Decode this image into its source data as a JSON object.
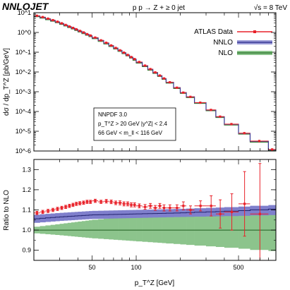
{
  "header": {
    "brand": "NNLOJET",
    "process": "p p → Z + ≥ 0 jet",
    "energy": "√s = 8 TeV"
  },
  "legend": [
    {
      "label": "ATLAS Data",
      "color": "#e8222a"
    },
    {
      "label": "NNLO",
      "color": "#4a4aa6"
    },
    {
      "label": "NLO",
      "color": "#4f9e4f"
    }
  ],
  "infobox": {
    "line1": "NNPDF 3.0",
    "line2": "p_T^Z > 20 GeV   |y^Z| < 2.4",
    "line3": "66 GeV < m_ll < 116 GeV"
  },
  "chart_data": [
    {
      "type": "line",
      "title": "",
      "ylabel": "dσ / dp_T^Z [pb/GeV]",
      "xscale": "log",
      "yscale": "log",
      "xlim": [
        20,
        900
      ],
      "ylim": [
        1e-06,
        10
      ],
      "grid": false,
      "legend_position": "top-right",
      "yticks": [
        "10^-6",
        "10^-5",
        "10^-4",
        "10^-3",
        "10^-2",
        "10^-1",
        "10^0",
        "10^1"
      ],
      "bin_edges": [
        20,
        22,
        24,
        26,
        28,
        30,
        32,
        34,
        36,
        38,
        40,
        42.5,
        45,
        47.5,
        50,
        55,
        60,
        65,
        70,
        75,
        80,
        85,
        90,
        95,
        100,
        110,
        120,
        130,
        140,
        150,
        160,
        180,
        200,
        220,
        250,
        300,
        350,
        400,
        500,
        600,
        800,
        900
      ],
      "series": [
        {
          "name": "ATLAS Data",
          "values": [
            7.0,
            6.0,
            5.0,
            4.2,
            3.5,
            2.9,
            2.4,
            2.0,
            1.7,
            1.45,
            1.2,
            1.0,
            0.82,
            0.7,
            0.55,
            0.4,
            0.3,
            0.22,
            0.165,
            0.125,
            0.095,
            0.073,
            0.057,
            0.045,
            0.032,
            0.021,
            0.014,
            0.0095,
            0.0066,
            0.0047,
            0.003,
            0.0016,
            0.0009,
            0.00055,
            0.00028,
            0.00012,
            5.5e-05,
            2.3e-05,
            8e-06,
            3.2e-06,
            1.2e-06
          ]
        },
        {
          "name": "NNLO",
          "values": [
            6.8,
            5.8,
            4.85,
            4.05,
            3.4,
            2.82,
            2.35,
            1.95,
            1.65,
            1.4,
            1.17,
            0.97,
            0.8,
            0.68,
            0.53,
            0.39,
            0.29,
            0.215,
            0.162,
            0.123,
            0.094,
            0.072,
            0.056,
            0.044,
            0.031,
            0.0205,
            0.0137,
            0.0093,
            0.0065,
            0.0046,
            0.003,
            0.0016,
            0.0009,
            0.00055,
            0.00028,
            0.000118,
            5.4e-05,
            2.25e-05,
            7.8e-06,
            3.1e-06,
            1.15e-06
          ]
        },
        {
          "name": "NLO",
          "values": [
            6.2,
            5.3,
            4.4,
            3.7,
            3.1,
            2.55,
            2.12,
            1.76,
            1.49,
            1.26,
            1.05,
            0.87,
            0.72,
            0.61,
            0.48,
            0.35,
            0.26,
            0.193,
            0.145,
            0.11,
            0.084,
            0.065,
            0.05,
            0.039,
            0.028,
            0.0185,
            0.0123,
            0.0084,
            0.0059,
            0.0042,
            0.0027,
            0.00145,
            0.00082,
            0.0005,
            0.000255,
            0.000108,
            4.9e-05,
            2.05e-05,
            7.1e-06,
            2.8e-06,
            1.05e-06
          ]
        }
      ]
    },
    {
      "type": "area",
      "title": "",
      "xlabel": "p_T^Z [GeV]",
      "ylabel": "Ratio to NLO",
      "xscale": "log",
      "xlim": [
        20,
        900
      ],
      "ylim": [
        0.85,
        1.35
      ],
      "grid": false,
      "xticks": [
        50,
        100,
        500
      ],
      "yticks": [
        0.9,
        1.0,
        1.1,
        1.2,
        1.3
      ],
      "series": [
        {
          "name": "ATLAS Data",
          "type": "points",
          "x": [
            21,
            23,
            25,
            27,
            29,
            31,
            33,
            35,
            37,
            39,
            41.2,
            43.7,
            46.2,
            48.7,
            52.5,
            57.5,
            62.5,
            67.5,
            72.5,
            77.5,
            82.5,
            87.5,
            92.5,
            97.5,
            105,
            115,
            125,
            135,
            145,
            155,
            170,
            190,
            210,
            235,
            275,
            325,
            375,
            450,
            550,
            700
          ],
          "y": [
            1.085,
            1.09,
            1.095,
            1.1,
            1.105,
            1.11,
            1.115,
            1.12,
            1.125,
            1.13,
            1.133,
            1.136,
            1.14,
            1.14,
            1.145,
            1.14,
            1.143,
            1.14,
            1.135,
            1.135,
            1.13,
            1.13,
            1.125,
            1.125,
            1.12,
            1.115,
            1.12,
            1.11,
            1.12,
            1.11,
            1.11,
            1.11,
            1.12,
            1.1,
            1.12,
            1.12,
            1.08,
            1.09,
            1.13,
            1.08
          ],
          "err": [
            0.008,
            0.008,
            0.008,
            0.008,
            0.008,
            0.008,
            0.008,
            0.008,
            0.008,
            0.008,
            0.008,
            0.008,
            0.008,
            0.008,
            0.008,
            0.008,
            0.009,
            0.009,
            0.009,
            0.01,
            0.01,
            0.01,
            0.01,
            0.01,
            0.01,
            0.012,
            0.012,
            0.012,
            0.012,
            0.015,
            0.015,
            0.015,
            0.02,
            0.02,
            0.025,
            0.05,
            0.07,
            0.09,
            0.16,
            0.25
          ]
        },
        {
          "name": "NNLO",
          "type": "band",
          "x": [
            20,
            30,
            50,
            100,
            200,
            500,
            900
          ],
          "y": [
            1.055,
            1.065,
            1.075,
            1.08,
            1.085,
            1.095,
            1.105
          ],
          "lo": [
            1.035,
            1.045,
            1.055,
            1.06,
            1.065,
            1.07,
            1.075
          ],
          "hi": [
            1.075,
            1.085,
            1.095,
            1.1,
            1.105,
            1.115,
            1.125
          ]
        },
        {
          "name": "NLO",
          "type": "band",
          "x": [
            20,
            30,
            50,
            100,
            200,
            500,
            900
          ],
          "y": [
            1.0,
            1.0,
            1.0,
            1.0,
            1.0,
            1.0,
            1.0
          ],
          "lo": [
            0.985,
            0.975,
            0.96,
            0.945,
            0.93,
            0.91,
            0.895
          ],
          "hi": [
            1.015,
            1.03,
            1.05,
            1.07,
            1.085,
            1.1,
            1.105
          ]
        }
      ]
    }
  ]
}
